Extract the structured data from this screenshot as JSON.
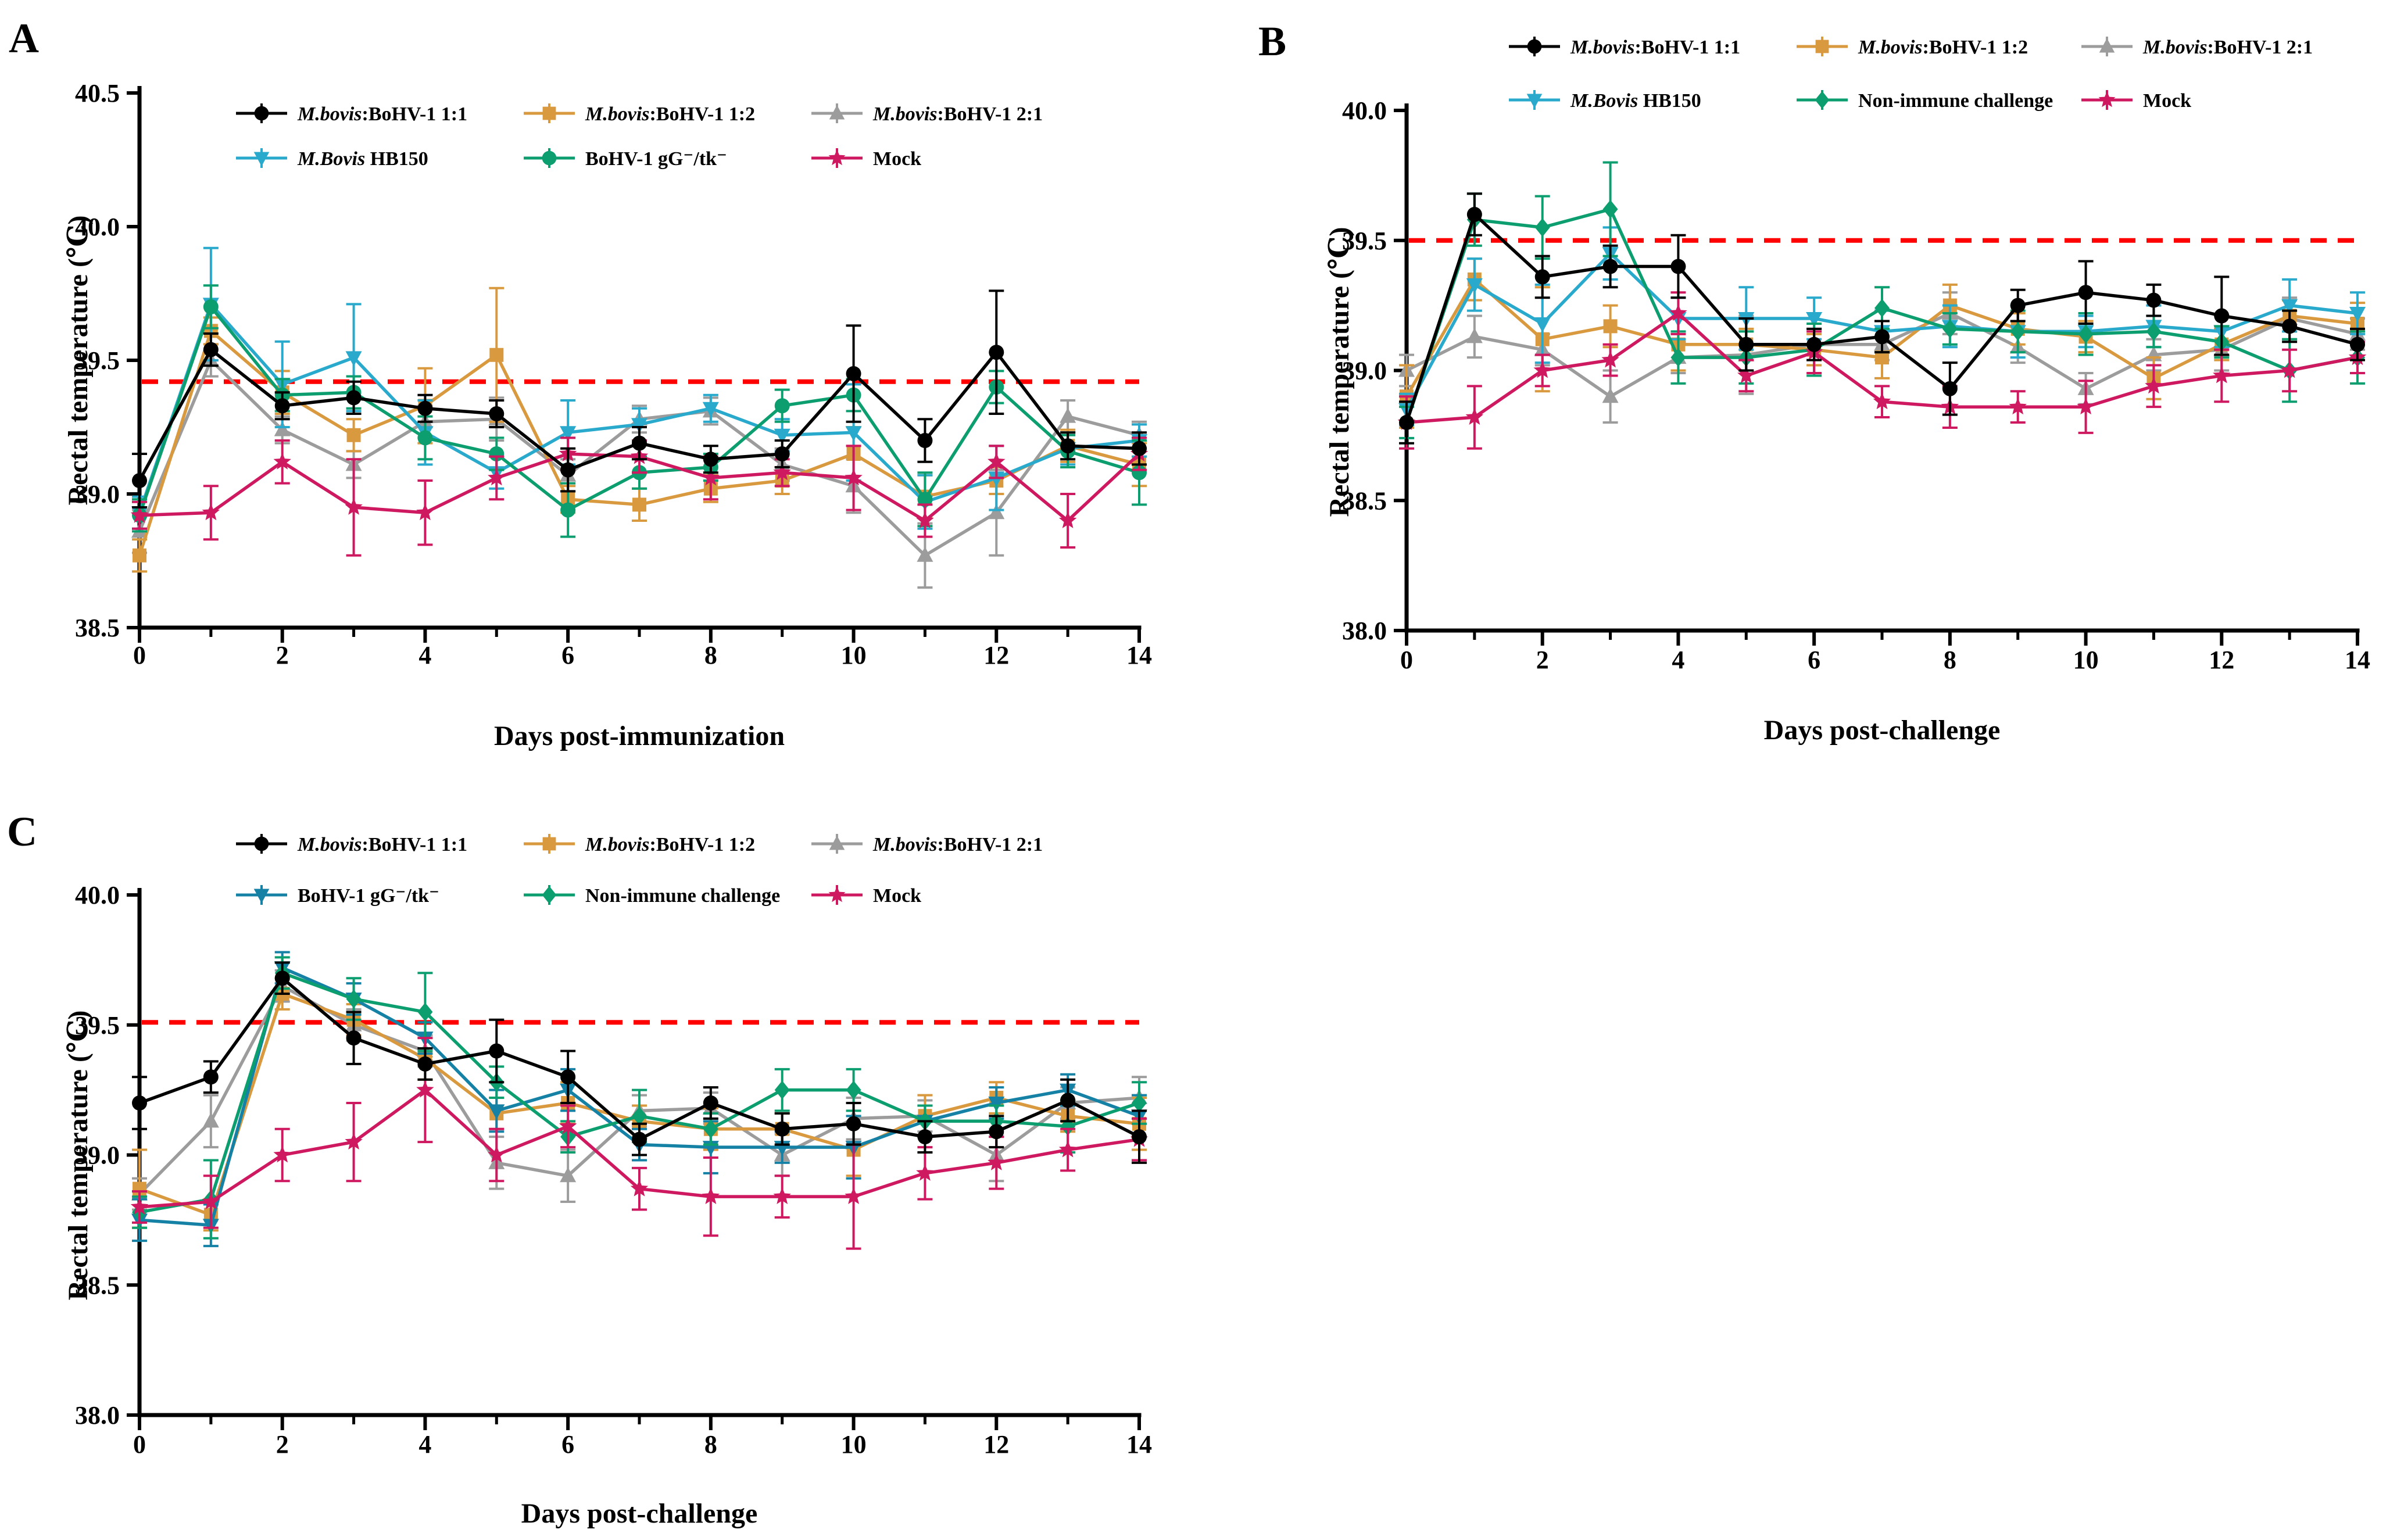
{
  "chart_data": [
    {
      "type": "line",
      "letter": "A",
      "x_label": "Days post-immunization",
      "y_label": "Rectal temperature (℃)",
      "x": [
        0,
        1,
        2,
        3,
        4,
        5,
        6,
        7,
        8,
        9,
        10,
        11,
        12,
        13,
        14
      ],
      "x_ticks": [
        "0",
        "2",
        "4",
        "6",
        "8",
        "10",
        "12",
        "14"
      ],
      "y_ticks": [
        "38.5",
        "39.0",
        "39.5",
        "40.0",
        "40.5"
      ],
      "ylim": [
        38.5,
        40.5
      ],
      "threshold": {
        "value": 39.42,
        "color": "#FF0000",
        "style": "dashed"
      },
      "legend_position": "top-inside",
      "grid": "off",
      "series": [
        {
          "label_em": "M.bovis",
          "label_rest": ":BoHV-1 1:1",
          "color": "#000000",
          "marker": "circle",
          "values": [
            39.05,
            39.54,
            39.33,
            39.36,
            39.32,
            39.3,
            39.09,
            39.19,
            39.13,
            39.15,
            39.45,
            39.2,
            39.53,
            39.18,
            39.17
          ],
          "err": [
            0.1,
            0.06,
            0.05,
            0.06,
            0.05,
            0.05,
            0.08,
            0.06,
            0.05,
            0.05,
            0.18,
            0.08,
            0.23,
            0.05,
            0.06
          ]
        },
        {
          "label_em": "M.bovis",
          "label_rest": ":BoHV-1 1:2",
          "color": "#D9993F",
          "marker": "square",
          "values": [
            38.77,
            39.61,
            39.38,
            39.22,
            39.33,
            39.52,
            38.98,
            38.96,
            39.02,
            39.05,
            39.15,
            38.99,
            39.05,
            39.18,
            39.11
          ],
          "err": [
            0.06,
            0.05,
            0.08,
            0.06,
            0.14,
            0.25,
            0.05,
            0.06,
            0.05,
            0.05,
            0.1,
            0.08,
            0.05,
            0.06,
            0.08
          ]
        },
        {
          "label_em": "M.bovis",
          "label_rest": ":BoHV-1 2:1",
          "color": "#9C9C9C",
          "marker": "triangle",
          "values": [
            38.86,
            39.5,
            39.24,
            39.11,
            39.27,
            39.28,
            39.07,
            39.28,
            39.31,
            39.11,
            39.03,
            38.77,
            38.93,
            39.29,
            39.22
          ],
          "err": [
            0.08,
            0.06,
            0.05,
            0.05,
            0.06,
            0.08,
            0.06,
            0.05,
            0.05,
            0.06,
            0.1,
            0.12,
            0.16,
            0.06,
            0.05
          ]
        },
        {
          "label_em": "M.Bovis",
          "label_rest": " HB150",
          "color": "#29A9CB",
          "marker": "triangle-down",
          "values": [
            38.93,
            39.71,
            39.41,
            39.51,
            39.23,
            39.08,
            39.23,
            39.26,
            39.32,
            39.22,
            39.23,
            38.97,
            39.06,
            39.17,
            39.2
          ],
          "err": [
            0.06,
            0.21,
            0.16,
            0.2,
            0.12,
            0.06,
            0.12,
            0.06,
            0.05,
            0.06,
            0.18,
            0.1,
            0.12,
            0.06,
            0.06
          ]
        },
        {
          "label_em": "",
          "label_rest": "BoHV-1 gG⁻/tk⁻",
          "color": "#0D9E70",
          "marker": "circle",
          "values": [
            38.92,
            39.7,
            39.37,
            39.38,
            39.21,
            39.15,
            38.94,
            39.08,
            39.1,
            39.33,
            39.37,
            38.98,
            39.4,
            39.16,
            39.08
          ],
          "err": [
            0.06,
            0.08,
            0.06,
            0.06,
            0.08,
            0.06,
            0.1,
            0.06,
            0.05,
            0.06,
            0.06,
            0.1,
            0.06,
            0.06,
            0.12
          ]
        },
        {
          "label_em": "",
          "label_rest": "Mock",
          "color": "#CE1960",
          "marker": "star",
          "values": [
            38.92,
            38.93,
            39.12,
            38.95,
            38.93,
            39.06,
            39.15,
            39.14,
            39.06,
            39.08,
            39.06,
            38.9,
            39.12,
            38.9,
            39.15
          ],
          "err": [
            0.05,
            0.1,
            0.08,
            0.18,
            0.12,
            0.08,
            0.06,
            0.06,
            0.08,
            0.05,
            0.12,
            0.06,
            0.06,
            0.1,
            0.06
          ]
        }
      ]
    },
    {
      "type": "line",
      "letter": "B",
      "x_label": "Days post-challenge",
      "y_label": "Rectal temperature (℃)",
      "x": [
        0,
        1,
        2,
        3,
        4,
        5,
        6,
        7,
        8,
        9,
        10,
        11,
        12,
        13,
        14
      ],
      "x_ticks": [
        "0",
        "2",
        "4",
        "6",
        "8",
        "10",
        "12",
        "14"
      ],
      "y_ticks": [
        "38.0",
        "38.5",
        "39.0",
        "39.5",
        "40.0"
      ],
      "ylim": [
        38.0,
        40.0
      ],
      "threshold": {
        "value": 39.5,
        "color": "#FF0000",
        "style": "dashed"
      },
      "legend_position": "top-inside",
      "grid": "off",
      "series": [
        {
          "label_em": "M.bovis",
          "label_rest": ":BoHV-1 1:1",
          "color": "#000000",
          "marker": "circle",
          "values": [
            38.8,
            39.6,
            39.36,
            39.4,
            39.4,
            39.1,
            39.1,
            39.13,
            38.93,
            39.25,
            39.3,
            39.27,
            39.21,
            39.17,
            39.1
          ],
          "err": [
            0.08,
            0.08,
            0.08,
            0.08,
            0.12,
            0.1,
            0.06,
            0.06,
            0.1,
            0.06,
            0.12,
            0.06,
            0.15,
            0.06,
            0.06
          ]
        },
        {
          "label_em": "M.bovis",
          "label_rest": ":BoHV-1 1:2",
          "color": "#D9993F",
          "marker": "square",
          "values": [
            38.9,
            39.35,
            39.12,
            39.17,
            39.1,
            39.1,
            39.08,
            39.05,
            39.25,
            39.16,
            39.13,
            38.97,
            39.1,
            39.21,
            39.18
          ],
          "err": [
            0.12,
            0.08,
            0.2,
            0.08,
            0.1,
            0.06,
            0.06,
            0.08,
            0.08,
            0.06,
            0.06,
            0.08,
            0.06,
            0.06,
            0.08
          ]
        },
        {
          "label_em": "M.bovis",
          "label_rest": ":BoHV-1 2:1",
          "color": "#9C9C9C",
          "marker": "triangle",
          "values": [
            39.0,
            39.13,
            39.08,
            38.9,
            39.05,
            39.06,
            39.1,
            39.1,
            39.22,
            39.09,
            38.93,
            39.06,
            39.08,
            39.2,
            39.14
          ],
          "err": [
            0.06,
            0.08,
            0.06,
            0.1,
            0.06,
            0.15,
            0.06,
            0.06,
            0.08,
            0.06,
            0.06,
            0.06,
            0.08,
            0.08,
            0.06
          ]
        },
        {
          "label_em": "M.Bovis",
          "label_rest": " HB150",
          "color": "#29A9CB",
          "marker": "triangle-down",
          "values": [
            38.85,
            39.33,
            39.18,
            39.45,
            39.2,
            39.2,
            39.2,
            39.15,
            39.17,
            39.15,
            39.15,
            39.17,
            39.15,
            39.25,
            39.22
          ],
          "err": [
            0.06,
            0.1,
            0.15,
            0.1,
            0.08,
            0.12,
            0.08,
            0.08,
            0.08,
            0.1,
            0.06,
            0.08,
            0.06,
            0.1,
            0.08
          ]
        },
        {
          "label_em": "",
          "label_rest": "Non-immune challenge",
          "color": "#0D9E70",
          "marker": "diamond",
          "values": [
            38.8,
            39.58,
            39.55,
            39.62,
            39.05,
            39.05,
            39.08,
            39.24,
            39.16,
            39.15,
            39.14,
            39.15,
            39.11,
            39.0,
            39.05
          ],
          "err": [
            0.06,
            0.1,
            0.12,
            0.18,
            0.1,
            0.1,
            0.1,
            0.08,
            0.06,
            0.08,
            0.08,
            0.06,
            0.06,
            0.12,
            0.1
          ]
        },
        {
          "label_em": "",
          "label_rest": "Mock",
          "color": "#CE1960",
          "marker": "star",
          "values": [
            38.8,
            38.82,
            39.0,
            39.04,
            39.22,
            38.98,
            39.07,
            38.88,
            38.86,
            38.86,
            38.86,
            38.94,
            38.98,
            39.0,
            39.05
          ],
          "err": [
            0.1,
            0.12,
            0.06,
            0.06,
            0.08,
            0.06,
            0.08,
            0.06,
            0.08,
            0.06,
            0.1,
            0.08,
            0.1,
            0.08,
            0.06
          ]
        }
      ]
    },
    {
      "type": "line",
      "letter": "C",
      "x_label": "Days post-challenge",
      "y_label": "Rectal temperature (℃)",
      "x": [
        0,
        1,
        2,
        3,
        4,
        5,
        6,
        7,
        8,
        9,
        10,
        11,
        12,
        13,
        14
      ],
      "x_ticks": [
        "0",
        "2",
        "4",
        "6",
        "8",
        "10",
        "12",
        "14"
      ],
      "y_ticks": [
        "38.0",
        "38.5",
        "39.0",
        "39.5",
        "40.0"
      ],
      "ylim": [
        38.0,
        40.0
      ],
      "threshold": {
        "value": 39.51,
        "color": "#FF0000",
        "style": "dashed"
      },
      "legend_position": "top-inside",
      "grid": "off",
      "series": [
        {
          "label_em": "M.bovis",
          "label_rest": ":BoHV-1 1:1",
          "color": "#000000",
          "marker": "circle",
          "values": [
            39.2,
            39.3,
            39.68,
            39.45,
            39.35,
            39.4,
            39.3,
            39.06,
            39.2,
            39.1,
            39.12,
            39.07,
            39.09,
            39.21,
            39.07
          ],
          "err": [
            0.1,
            0.06,
            0.06,
            0.1,
            0.06,
            0.12,
            0.1,
            0.06,
            0.06,
            0.06,
            0.08,
            0.06,
            0.06,
            0.08,
            0.1
          ]
        },
        {
          "label_em": "M.bovis",
          "label_rest": ":BoHV-1 1:2",
          "color": "#D9993F",
          "marker": "square",
          "values": [
            38.87,
            38.77,
            39.62,
            39.52,
            39.37,
            39.16,
            39.2,
            39.13,
            39.1,
            39.1,
            39.02,
            39.15,
            39.22,
            39.15,
            39.12
          ],
          "err": [
            0.15,
            0.06,
            0.06,
            0.06,
            0.08,
            0.06,
            0.08,
            0.06,
            0.08,
            0.06,
            0.1,
            0.08,
            0.06,
            0.06,
            0.1
          ]
        },
        {
          "label_em": "M.bovis",
          "label_rest": ":BoHV-1 2:1",
          "color": "#9C9C9C",
          "marker": "triangle",
          "values": [
            38.85,
            39.13,
            39.65,
            39.5,
            39.4,
            38.97,
            38.92,
            39.17,
            39.18,
            39.0,
            39.14,
            39.15,
            39.0,
            39.2,
            39.22
          ],
          "err": [
            0.06,
            0.1,
            0.06,
            0.06,
            0.06,
            0.1,
            0.1,
            0.06,
            0.06,
            0.08,
            0.08,
            0.06,
            0.1,
            0.06,
            0.08
          ]
        },
        {
          "label_em": "",
          "label_rest": "BoHV-1 gG⁻/tk⁻",
          "color": "#1481A5",
          "marker": "triangle-down",
          "values": [
            38.75,
            38.73,
            39.72,
            39.6,
            39.45,
            39.17,
            39.25,
            39.04,
            39.03,
            39.03,
            39.03,
            39.13,
            39.2,
            39.25,
            39.15
          ],
          "err": [
            0.08,
            0.08,
            0.06,
            0.06,
            0.06,
            0.08,
            0.08,
            0.06,
            0.1,
            0.06,
            0.12,
            0.06,
            0.06,
            0.06,
            0.08
          ]
        },
        {
          "label_em": "",
          "label_rest": "Non-immune challenge",
          "color": "#0D9E70",
          "marker": "diamond",
          "values": [
            38.78,
            38.83,
            39.7,
            39.6,
            39.55,
            39.28,
            39.07,
            39.15,
            39.1,
            39.25,
            39.25,
            39.13,
            39.13,
            39.11,
            39.2
          ],
          "err": [
            0.06,
            0.15,
            0.06,
            0.08,
            0.15,
            0.06,
            0.06,
            0.1,
            0.06,
            0.08,
            0.08,
            0.06,
            0.06,
            0.1,
            0.08
          ]
        },
        {
          "label_em": "",
          "label_rest": "Mock",
          "color": "#CE1960",
          "marker": "star",
          "values": [
            38.8,
            38.82,
            39.0,
            39.05,
            39.25,
            39.0,
            39.11,
            38.87,
            38.84,
            38.84,
            38.84,
            38.93,
            38.97,
            39.02,
            39.06
          ],
          "err": [
            0.06,
            0.1,
            0.1,
            0.15,
            0.2,
            0.1,
            0.08,
            0.08,
            0.15,
            0.08,
            0.2,
            0.1,
            0.1,
            0.08,
            0.08
          ]
        }
      ]
    }
  ]
}
